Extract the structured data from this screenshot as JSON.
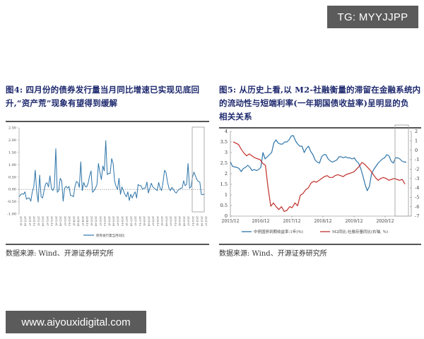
{
  "watermarks": {
    "top": "TG: MYYJJPP",
    "bottom": "www.aiyouxidigital.com"
  },
  "figure4": {
    "title_line1": "图4: 四月份的债券发行量当月同比增速已实现见底回",
    "title_line2": "升,“资产荒”现象有望得到缓解",
    "source": "数据来源: Wind、开源证券研究所"
  },
  "figure5": {
    "title_line1": "图5: 从历史上看,以 M2-社融衡量的滞留在金融系统内",
    "title_line2": "的流动性与短端利率(一年期国债收益率)呈明显的负",
    "title_line3": "相关关系",
    "source": "数据来源: Wind、开源证券研究所"
  },
  "colors": {
    "title": "#1f2a6e",
    "blue_series": "#2e74a8",
    "red_series": "#c0302c",
    "highlight_box": "#9a9a9a"
  },
  "chart_data": [
    {
      "type": "line",
      "title": "债券发行量当月同比",
      "xlabel": "",
      "ylabel": "",
      "ylim": [
        -1.0,
        2.5
      ],
      "yticks": [
        "2.50",
        "2.00",
        "1.50",
        "1.00",
        "0.50",
        "0.00",
        "-0.50",
        "-1.00"
      ],
      "x_range": [
        "2011-01",
        "2021-04"
      ],
      "legend": [
        "债券发行量当月同比"
      ],
      "legend_position": "bottom",
      "grid": false,
      "reference_line": 0.0,
      "highlight_region": [
        "2020-09",
        "2021-04"
      ],
      "series": [
        {
          "name": "债券发行量当月同比",
          "values": [
            -0.3,
            -0.22,
            -0.18,
            -0.2,
            -0.1,
            -0.4,
            -0.35,
            -0.35,
            -0.48,
            -0.1,
            0.1,
            0.78,
            -0.1,
            -0.52,
            0.58,
            -0.3,
            -0.35,
            -0.05,
            0.22,
            0.27,
            0.1,
            0.55,
            0.05,
            -0.05,
            0.1,
            1.65,
            -0.12,
            -0.05,
            0.45,
            0.35,
            -0.48,
            0.05,
            0.12,
            0.05,
            0.12,
            -0.25,
            -0.25,
            -0.3,
            0.1,
            0.32,
            0.28,
            0.08,
            1.12,
            -0.05,
            0.28,
            0.12,
            0.1,
            0.25,
            0.55,
            0.75,
            -0.12,
            -0.05,
            0.05,
            0.2,
            1.05,
            0.7,
            0.4,
            0.95,
            0.75,
            1.98,
            0.6,
            0.65,
            0.65,
            1.25,
            1.05,
            0.35,
            0.12,
            0.0,
            0.45,
            -0.2,
            0.1,
            -0.05,
            -0.2,
            -0.3,
            -0.1,
            -0.45,
            -0.2,
            -0.35,
            -0.2,
            -0.1,
            -0.35,
            0.2,
            0.15,
            0.15,
            0.0,
            0.05,
            0.05,
            0.3,
            -0.15,
            0.05,
            0.25,
            0.1,
            0.05,
            0.0,
            -0.05,
            0.28,
            0.05,
            -0.05,
            0.3,
            0.78,
            0.68,
            0.3,
            0.05,
            -0.05,
            0.08,
            0.0,
            -0.1,
            -0.15,
            -0.05,
            0.0,
            0.05,
            0.05,
            0.35,
            0.15,
            0.2,
            1.05,
            0.05,
            0.1,
            0.5,
            0.7,
            0.55,
            0.4,
            0.32,
            0.3,
            -0.2,
            -0.22,
            -0.18
          ]
        }
      ]
    },
    {
      "type": "line",
      "title": "",
      "xlabel": "",
      "ylabel": "",
      "categories": [
        "2015/12",
        "2016/12",
        "2017/12",
        "2018/12",
        "2019/12",
        "2020/12"
      ],
      "ylim_left": [
        0,
        4
      ],
      "yticks_left": [
        "4",
        "3.5",
        "3",
        "2.5",
        "2",
        "1.5",
        "1",
        "0.5",
        "0"
      ],
      "ylim_right": [
        -7,
        2
      ],
      "yticks_right": [
        "2",
        "1",
        "0",
        "-1",
        "-2",
        "-3",
        "-4",
        "-5",
        "-6",
        "-7"
      ],
      "legend": [
        "中债国债到期收益率:1年(%)",
        "M2同比-社融存量同比(右轴, %)"
      ],
      "legend_position": "bottom",
      "grid": false,
      "highlight_region": [
        "2020/12",
        "2021/04"
      ],
      "series": [
        {
          "name": "中债国债到期收益率:1年(%)",
          "axis": "left",
          "values": [
            2.55,
            2.35,
            2.32,
            2.3,
            2.25,
            2.1,
            2.25,
            2.3,
            2.4,
            2.3,
            2.15,
            2.2,
            2.15,
            2.2,
            2.3,
            3.0,
            2.7,
            2.8,
            2.9,
            3.0,
            3.45,
            3.6,
            3.45,
            3.4,
            3.4,
            3.5,
            3.5,
            3.6,
            3.78,
            3.8,
            3.55,
            3.4,
            3.3,
            3.3,
            3.0,
            3.2,
            3.3,
            3.05,
            2.9,
            2.65,
            2.55,
            2.5,
            2.8,
            2.9,
            2.9,
            2.7,
            2.6,
            2.55,
            2.6,
            2.65,
            2.8,
            2.8,
            2.75,
            2.8,
            2.75,
            2.75,
            2.7,
            2.75,
            2.6,
            2.5,
            2.25,
            1.9,
            1.5,
            1.2,
            1.4,
            2.0,
            2.2,
            2.35,
            2.5,
            2.6,
            2.7,
            2.75,
            2.9,
            2.85,
            2.6,
            2.5,
            2.75,
            2.75,
            2.7,
            2.6,
            2.55,
            2.55
          ]
        },
        {
          "name": "M2同比-社融存量同比(右轴, %)",
          "axis": "right",
          "values": [
            0.88,
            0.75,
            0.6,
            0.1,
            -0.3,
            -0.6,
            -0.4,
            -0.6,
            -0.8,
            -0.9,
            -1.0,
            -1.4,
            -1.6,
            -4.0,
            -5.95,
            -5.6,
            -6.0,
            -6.3,
            -6.0,
            -6.5,
            -6.4,
            -6.0,
            -6.1,
            -5.6,
            -5.9,
            -4.8,
            -4.6,
            -4.2,
            -4.0,
            -3.5,
            -3.3,
            -3.4,
            -3.2,
            -3.0,
            -2.8,
            -2.7,
            -2.9,
            -2.9,
            -2.7,
            -2.6,
            -2.7,
            -2.8,
            -2.6,
            -2.5,
            -2.4,
            -2.3,
            -2.0,
            -1.7,
            -1.3,
            -1.5,
            -1.8,
            -2.1,
            -2.5,
            -2.9,
            -3.2,
            -3.0,
            -2.9,
            -3.0,
            -3.2,
            -3.1,
            -3.0,
            -3.1,
            -3.2,
            -3.1,
            -3.6
          ]
        }
      ]
    }
  ]
}
